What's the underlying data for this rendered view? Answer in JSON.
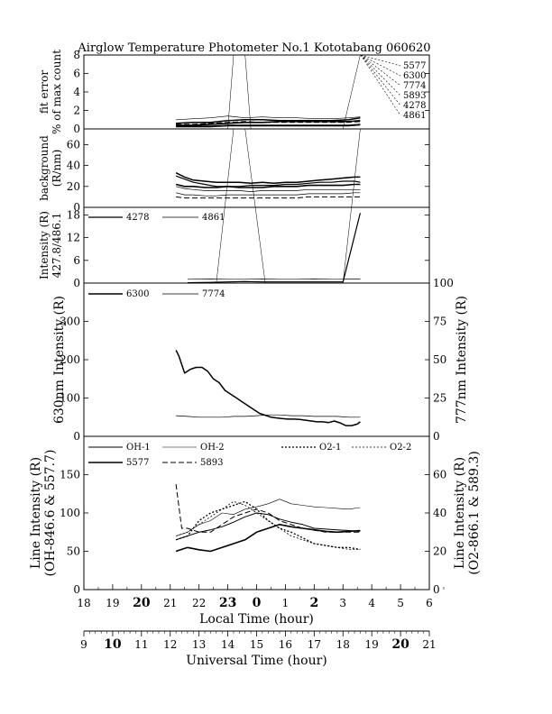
{
  "title": "Airglow Temperature Photometer No.1   Kototabang 060620",
  "x_axes": {
    "local": {
      "label": "Local Time (hour)",
      "ticks": [
        "18",
        "19",
        "20",
        "21",
        "22",
        "23",
        "0",
        "1",
        "2",
        "3",
        "4",
        "5",
        "6"
      ],
      "bold_ticks": [
        "20",
        "23",
        "0",
        "2"
      ]
    },
    "universal": {
      "label": "Universal Time (hour)",
      "ticks": [
        "9",
        "10",
        "11",
        "12",
        "13",
        "14",
        "15",
        "16",
        "17",
        "18",
        "19",
        "20",
        "21"
      ],
      "bold_ticks": [
        "10",
        "20"
      ]
    },
    "range_universal": [
      9,
      21
    ]
  },
  "chart_data": [
    {
      "type": "line",
      "panel": "fit-error",
      "ylabel_lines": [
        "fit error",
        "% of max count"
      ],
      "ylim": [
        0,
        8
      ],
      "yticks": [
        "0",
        "2",
        "4",
        "6",
        "8"
      ],
      "legend_labels": [
        "5577",
        "6300",
        "7774",
        "5893",
        "4278",
        "4861"
      ],
      "series": [
        {
          "name": "5577",
          "x": [
            12.2,
            12.8,
            13.4,
            14.0,
            14.6,
            15.2,
            15.8,
            16.4,
            17.0,
            17.6,
            18.2,
            18.6
          ],
          "y": [
            0.4,
            0.4,
            0.5,
            0.6,
            0.7,
            0.7,
            0.8,
            0.8,
            0.8,
            0.8,
            0.8,
            0.9
          ]
        },
        {
          "name": "6300",
          "x": [
            12.2,
            12.8,
            13.4,
            14.0,
            14.6,
            15.2,
            15.8,
            16.4,
            17.0,
            17.6,
            18.2,
            18.6
          ],
          "y": [
            0.6,
            0.7,
            0.7,
            0.9,
            1.0,
            1.0,
            0.9,
            0.9,
            0.9,
            0.9,
            1.0,
            1.2
          ]
        },
        {
          "name": "7774",
          "x": [
            12.2,
            12.8,
            13.4,
            14.0,
            14.6,
            15.2,
            15.8,
            16.4,
            17.0,
            17.6,
            18.2,
            18.6
          ],
          "y": [
            1.0,
            1.1,
            1.2,
            1.4,
            1.2,
            1.3,
            1.2,
            1.2,
            1.1,
            1.1,
            1.2,
            1.3
          ]
        },
        {
          "name": "5893",
          "x": [
            12.2,
            12.8,
            13.4,
            14.0,
            14.6,
            15.2,
            15.8,
            16.4,
            17.0,
            17.6,
            18.2,
            18.6
          ],
          "y": [
            0.5,
            0.5,
            0.6,
            0.7,
            0.8,
            0.7,
            0.7,
            0.7,
            0.7,
            0.7,
            0.7,
            0.8
          ]
        },
        {
          "name": "4278",
          "x": [
            12.2,
            12.8,
            13.4,
            14.0,
            14.6,
            15.2,
            15.8,
            16.4,
            17.0,
            17.6,
            18.2,
            18.6
          ],
          "y": [
            0.3,
            0.3,
            0.3,
            0.4,
            0.4,
            0.4,
            0.4,
            0.4,
            0.4,
            0.4,
            0.4,
            0.5
          ]
        },
        {
          "name": "4861",
          "x": [
            12.2,
            12.8,
            13.4,
            14.0,
            14.6,
            15.2,
            15.8,
            16.4,
            17.0,
            17.6,
            18.2,
            18.6
          ],
          "y": [
            0.2,
            0.2,
            0.2,
            0.3,
            0.3,
            0.3,
            0.3,
            0.3,
            0.3,
            0.3,
            0.3,
            0.4
          ]
        }
      ]
    },
    {
      "type": "line",
      "panel": "background",
      "ylabel_lines": [
        "background",
        "(R/nm)"
      ],
      "ylim": [
        0,
        75
      ],
      "yticks": [
        "0",
        "20",
        "40",
        "60"
      ],
      "series": [
        {
          "name": "4278",
          "x": [
            12.2,
            12.5,
            12.8,
            13.2,
            13.6,
            14.0,
            14.4,
            14.8,
            15.2,
            15.6,
            16.0,
            16.4,
            16.8,
            17.2,
            17.6,
            18.0,
            18.4,
            18.6
          ],
          "y": [
            30,
            27,
            24,
            22,
            20,
            20,
            20,
            21,
            21,
            21,
            22,
            22,
            23,
            24,
            24,
            25,
            25,
            24
          ]
        },
        {
          "name": "4861",
          "x": [
            12.2,
            12.5,
            12.8,
            13.2,
            13.6,
            14.0,
            14.4,
            14.8,
            15.2,
            15.6,
            16.0,
            16.4,
            16.8,
            17.2,
            17.6,
            18.0,
            18.4,
            18.6
          ],
          "y": [
            14,
            12,
            12,
            11,
            11,
            12,
            12,
            12,
            12,
            12,
            12,
            12,
            13,
            13,
            13,
            13,
            14,
            14
          ]
        },
        {
          "name": "5577",
          "x": [
            12.2,
            12.5,
            12.8,
            13.2,
            13.6,
            14.0,
            14.4,
            14.8,
            15.2,
            15.6,
            16.0,
            16.4,
            16.8,
            17.2,
            17.6,
            18.0,
            18.4,
            18.6
          ],
          "y": [
            22,
            20,
            20,
            19,
            19,
            20,
            19,
            19,
            19,
            20,
            20,
            20,
            21,
            21,
            21,
            21,
            22,
            22
          ]
        },
        {
          "name": "6300",
          "x": [
            12.2,
            12.5,
            12.8,
            13.2,
            13.6,
            14.0,
            14.4,
            14.8,
            15.2,
            15.6,
            16.0,
            16.4,
            16.8,
            17.2,
            17.6,
            18.0,
            18.4,
            18.6
          ],
          "y": [
            33,
            29,
            26,
            25,
            24,
            24,
            24,
            23,
            24,
            23,
            24,
            24,
            25,
            26,
            27,
            28,
            29,
            29
          ]
        },
        {
          "name": "7774",
          "x": [
            12.2,
            12.5,
            12.8,
            13.2,
            13.6,
            14.0,
            14.4,
            14.8,
            15.2,
            15.6,
            16.0,
            16.4,
            16.8,
            17.2,
            17.6,
            18.0,
            18.4,
            18.6
          ],
          "y": [
            20,
            18,
            17,
            16,
            16,
            16,
            16,
            15,
            16,
            16,
            16,
            16,
            17,
            17,
            17,
            17,
            17,
            17
          ]
        },
        {
          "name": "5893",
          "x": [
            12.2,
            12.5,
            12.8,
            13.2,
            13.6,
            14.0,
            14.4,
            14.8,
            15.2,
            15.6,
            16.0,
            16.4,
            16.8,
            17.2,
            17.6,
            18.0,
            18.4,
            18.6
          ],
          "y": [
            10,
            9,
            9,
            9,
            9,
            9,
            9,
            9,
            9,
            9,
            9,
            9,
            10,
            10,
            10,
            10,
            10,
            10
          ]
        }
      ]
    },
    {
      "type": "line",
      "panel": "intensity-427-486",
      "ylabel_lines": [
        "Intensity (R)",
        "427.8/486.1"
      ],
      "ylim": [
        0,
        20
      ],
      "yticks": [
        "0",
        "6",
        "12",
        "18"
      ],
      "legend_labels": [
        "4278",
        "4861"
      ],
      "series": [
        {
          "name": "4278",
          "x": [
            12.6,
            13.4,
            14.0,
            14.6,
            15.2,
            15.8,
            16.4,
            17.0,
            17.6,
            18.0,
            18.6
          ],
          "y": [
            0.1,
            0.2,
            0.3,
            0.4,
            0.3,
            0.3,
            0.3,
            0.3,
            0.3,
            0.3,
            18.5
          ]
        },
        {
          "name": "4861",
          "x": [
            12.6,
            13.4,
            14.0,
            14.6,
            15.2,
            15.8,
            16.4,
            17.0,
            17.6,
            18.0,
            18.6
          ],
          "y": [
            1.0,
            1.1,
            1.0,
            1.0,
            1.1,
            1.0,
            1.0,
            1.1,
            1.0,
            1.0,
            1.1
          ]
        }
      ]
    },
    {
      "type": "line",
      "panel": "intensity-630-777",
      "ylabel": "630nm Intensity (R)",
      "ylabel_right": "777nm Intensity (R)",
      "ylim": [
        0,
        400
      ],
      "yticks": [
        "0",
        "100",
        "200",
        "300"
      ],
      "ylim_right": [
        0,
        100
      ],
      "yticks_right": [
        "0",
        "25",
        "50",
        "75",
        "100"
      ],
      "legend_labels": [
        "6300",
        "7774"
      ],
      "series": [
        {
          "name": "6300",
          "x": [
            12.2,
            12.3,
            12.5,
            12.7,
            12.9,
            13.1,
            13.3,
            13.5,
            13.7,
            13.9,
            14.1,
            14.3,
            14.5,
            14.7,
            14.9,
            15.1,
            15.3,
            15.5,
            15.7,
            15.9,
            16.1,
            16.3,
            16.5,
            16.7,
            16.9,
            17.1,
            17.3,
            17.5,
            17.7,
            17.9,
            18.1,
            18.3,
            18.5,
            18.6
          ],
          "y": [
            225,
            210,
            165,
            175,
            180,
            180,
            170,
            150,
            140,
            120,
            110,
            100,
            90,
            80,
            70,
            60,
            55,
            50,
            48,
            46,
            45,
            45,
            44,
            42,
            40,
            38,
            38,
            36,
            40,
            35,
            28,
            28,
            32,
            38
          ]
        },
        {
          "name": "7774",
          "x": [
            12.2,
            12.6,
            13.0,
            13.4,
            13.8,
            14.2,
            14.6,
            15.0,
            15.4,
            15.8,
            16.2,
            16.6,
            17.0,
            17.4,
            17.8,
            18.2,
            18.6
          ],
          "y": [
            13.5,
            13,
            12.5,
            12.5,
            12.5,
            13,
            13,
            13.5,
            14,
            14,
            13.5,
            13.5,
            13,
            13,
            13,
            12.5,
            12.5
          ]
        }
      ]
    },
    {
      "type": "line",
      "panel": "line-intensity",
      "ylabel_lines": [
        "Line Intensity (R)",
        "(OH-846.6 & 557.7)"
      ],
      "ylabel_right_lines": [
        "Line Intensity (R)",
        "(O2-866.1 & 589.3)"
      ],
      "ylim": [
        0,
        200
      ],
      "yticks": [
        "0",
        "50",
        "100",
        "150"
      ],
      "ylim_right": [
        0,
        80
      ],
      "yticks_right": [
        "0",
        "20",
        "40",
        "60"
      ],
      "legend_labels": [
        "OH-1",
        "OH-2",
        "O2-1",
        "O2-2",
        "5577",
        "5893"
      ],
      "series": [
        {
          "name": "OH-1",
          "x": [
            12.2,
            12.6,
            13.0,
            13.4,
            13.8,
            14.2,
            14.6,
            15.0,
            15.4,
            15.8,
            16.2,
            16.6,
            17.0,
            17.4,
            17.8,
            18.2,
            18.6
          ],
          "y": [
            65,
            70,
            75,
            78,
            82,
            88,
            95,
            100,
            98,
            92,
            88,
            85,
            80,
            79,
            78,
            77,
            76
          ]
        },
        {
          "name": "OH-2",
          "x": [
            12.2,
            12.6,
            13.0,
            13.4,
            13.8,
            14.2,
            14.6,
            15.0,
            15.4,
            15.8,
            16.2,
            16.6,
            17.0,
            17.4,
            17.8,
            18.2,
            18.6
          ],
          "y": [
            70,
            75,
            85,
            90,
            100,
            98,
            105,
            108,
            112,
            118,
            112,
            110,
            108,
            107,
            106,
            105,
            107
          ]
        },
        {
          "name": "O2-1",
          "x": [
            12.2,
            12.6,
            13.0,
            13.4,
            13.8,
            14.2,
            14.6,
            15.0,
            15.4,
            15.8,
            16.2,
            16.6,
            17.0,
            17.4,
            17.8,
            18.2,
            18.6
          ],
          "y": [
            26,
            28,
            36,
            40,
            42,
            44,
            46,
            42,
            36,
            32,
            30,
            27,
            24,
            23,
            22,
            22,
            21
          ]
        },
        {
          "name": "O2-2",
          "x": [
            12.2,
            12.6,
            13.0,
            13.4,
            13.8,
            14.2,
            14.6,
            15.0,
            15.4,
            15.8,
            16.2,
            16.6,
            17.0,
            17.4,
            17.8,
            18.2,
            18.6
          ],
          "y": [
            28,
            30,
            34,
            38,
            42,
            46,
            44,
            40,
            36,
            32,
            28,
            26,
            24,
            23,
            22,
            21,
            21
          ]
        },
        {
          "name": "5577",
          "x": [
            12.2,
            12.6,
            13.0,
            13.4,
            13.8,
            14.2,
            14.6,
            15.0,
            15.4,
            15.8,
            16.2,
            16.6,
            17.0,
            17.4,
            17.8,
            18.2,
            18.6
          ],
          "y": [
            50,
            55,
            52,
            50,
            55,
            60,
            65,
            75,
            80,
            85,
            82,
            80,
            78,
            76,
            75,
            76,
            77
          ]
        },
        {
          "name": "5893",
          "x": [
            12.2,
            12.4,
            12.6,
            13.0,
            13.4,
            13.8,
            14.2,
            14.6,
            15.0,
            15.4,
            15.8,
            16.2,
            16.6,
            17.0,
            17.4,
            17.8,
            18.2,
            18.6
          ],
          "y": [
            55,
            32,
            32,
            30,
            30,
            34,
            38,
            40,
            42,
            40,
            36,
            34,
            32,
            31,
            30,
            30,
            30,
            30
          ]
        }
      ]
    }
  ]
}
